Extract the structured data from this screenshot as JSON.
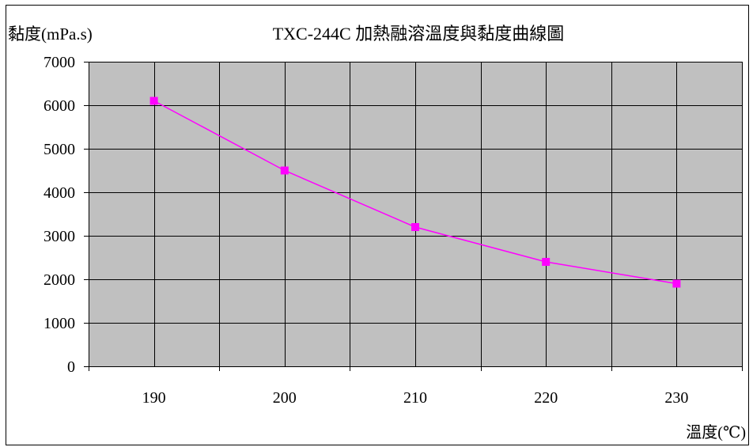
{
  "chart_data": {
    "type": "line",
    "title": "TXC-244C 加熱融溶溫度與黏度曲線圖",
    "xlabel": "溫度(℃)",
    "ylabel": "黏度(mPa.s)",
    "categories": [
      "190",
      "200",
      "210",
      "220",
      "230"
    ],
    "series": [
      {
        "values": [
          6100,
          4500,
          3200,
          2400,
          1900
        ],
        "color": "#FF00FF"
      }
    ],
    "ylim": [
      0,
      7000
    ],
    "yticks": [
      0,
      1000,
      2000,
      3000,
      4000,
      5000,
      6000,
      7000
    ],
    "grid": true,
    "plot_background": "#C0C0C0"
  }
}
